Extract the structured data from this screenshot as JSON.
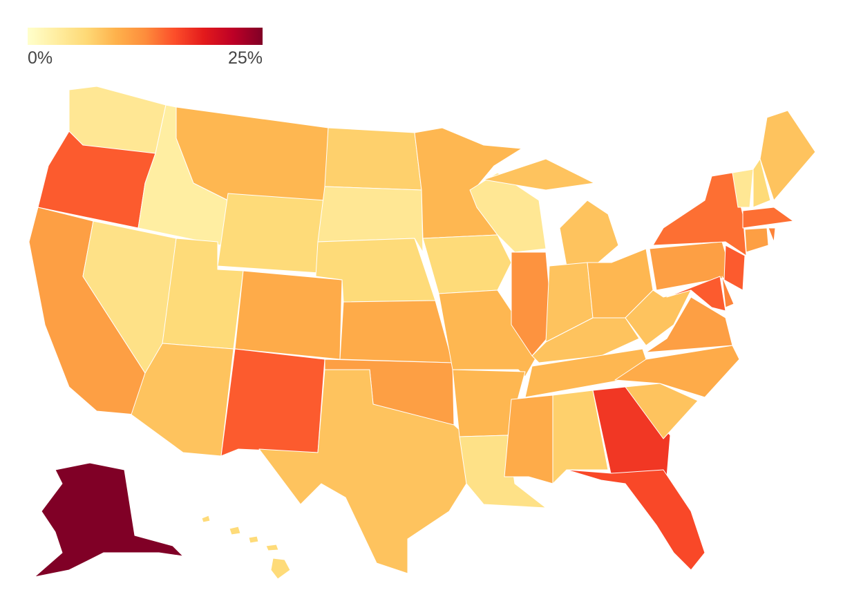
{
  "chart_data": {
    "type": "choropleth",
    "values": [
      4,
      15,
      11,
      5,
      3,
      9,
      6,
      6,
      8,
      10,
      15,
      7,
      4,
      6,
      10,
      11,
      8,
      9,
      6,
      9,
      9,
      5,
      4,
      12,
      8,
      8,
      9,
      8,
      9,
      10,
      7,
      17,
      16,
      8,
      10,
      11,
      8,
      11,
      14,
      4,
      6,
      8,
      14,
      11,
      13,
      15,
      13,
      15,
      25,
      6
    ],
    "colorscale": [
      "#ffffcc",
      "#ffeda0",
      "#fed976",
      "#feb24c",
      "#fd8d3c",
      "#fc4e2a",
      "#e31a1c",
      "#bd0026",
      "#800026"
    ],
    "zlim": [
      0,
      25
    ],
    "zticks": [
      {
        "value": 0,
        "label": "0%"
      },
      {
        "value": 25,
        "label": "25%"
      }
    ]
  }
}
